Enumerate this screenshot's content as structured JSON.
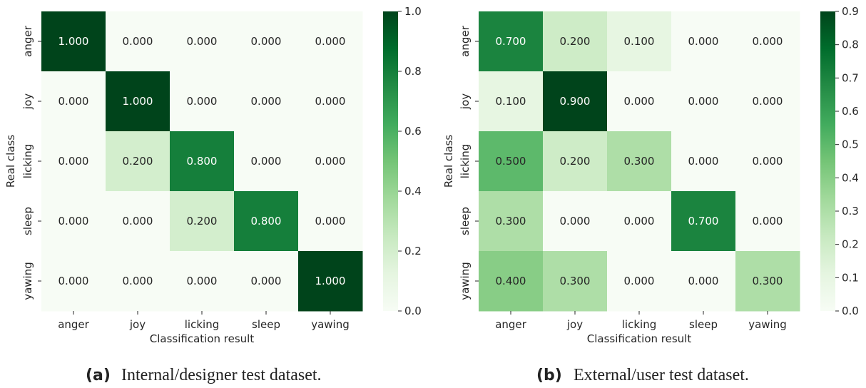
{
  "chart_data": [
    {
      "type": "heatmap",
      "caption_label": "(a)",
      "caption_text": "Internal/designer test dataset.",
      "xlabel": "Classification result",
      "ylabel": "Real class",
      "x_categories": [
        "anger",
        "joy",
        "licking",
        "sleep",
        "yawing"
      ],
      "y_categories": [
        "anger",
        "joy",
        "licking",
        "sleep",
        "yawing"
      ],
      "values": [
        [
          1.0,
          0.0,
          0.0,
          0.0,
          0.0
        ],
        [
          0.0,
          1.0,
          0.0,
          0.0,
          0.0
        ],
        [
          0.0,
          0.2,
          0.8,
          0.0,
          0.0
        ],
        [
          0.0,
          0.0,
          0.2,
          0.8,
          0.0
        ],
        [
          0.0,
          0.0,
          0.0,
          0.0,
          1.0
        ]
      ],
      "cell_labels": [
        [
          "1.000",
          "0.000",
          "0.000",
          "0.000",
          "0.000"
        ],
        [
          "0.000",
          "1.000",
          "0.000",
          "0.000",
          "0.000"
        ],
        [
          "0.000",
          "0.200",
          "0.800",
          "0.000",
          "0.000"
        ],
        [
          "0.000",
          "0.000",
          "0.200",
          "0.800",
          "0.000"
        ],
        [
          "0.000",
          "0.000",
          "0.000",
          "0.000",
          "1.000"
        ]
      ],
      "colormap": "Greens",
      "vmin": 0.0,
      "vmax": 1.0,
      "colorbar_ticks": [
        0.0,
        0.2,
        0.4,
        0.6,
        0.8,
        1.0
      ],
      "colorbar_tick_labels": [
        "0.0",
        "0.2",
        "0.4",
        "0.6",
        "0.8",
        "1.0"
      ]
    },
    {
      "type": "heatmap",
      "caption_label": "(b)",
      "caption_text": "External/user test dataset.",
      "xlabel": "Classification result",
      "ylabel": "Real class",
      "x_categories": [
        "anger",
        "joy",
        "licking",
        "sleep",
        "yawing"
      ],
      "y_categories": [
        "anger",
        "joy",
        "licking",
        "sleep",
        "yawing"
      ],
      "values": [
        [
          0.7,
          0.2,
          0.1,
          0.0,
          0.0
        ],
        [
          0.1,
          0.9,
          0.0,
          0.0,
          0.0
        ],
        [
          0.5,
          0.2,
          0.3,
          0.0,
          0.0
        ],
        [
          0.3,
          0.0,
          0.0,
          0.7,
          0.0
        ],
        [
          0.4,
          0.3,
          0.0,
          0.0,
          0.3
        ]
      ],
      "cell_labels": [
        [
          "0.700",
          "0.200",
          "0.100",
          "0.000",
          "0.000"
        ],
        [
          "0.100",
          "0.900",
          "0.000",
          "0.000",
          "0.000"
        ],
        [
          "0.500",
          "0.200",
          "0.300",
          "0.000",
          "0.000"
        ],
        [
          "0.300",
          "0.000",
          "0.000",
          "0.700",
          "0.000"
        ],
        [
          "0.400",
          "0.300",
          "0.000",
          "0.000",
          "0.300"
        ]
      ],
      "colormap": "Greens",
      "vmin": 0.0,
      "vmax": 0.9,
      "colorbar_ticks": [
        0.0,
        0.1,
        0.2,
        0.3,
        0.4,
        0.5,
        0.6,
        0.7,
        0.8,
        0.9
      ],
      "colorbar_tick_labels": [
        "0.0",
        "0.1",
        "0.2",
        "0.3",
        "0.4",
        "0.5",
        "0.6",
        "0.7",
        "0.8",
        "0.9"
      ]
    }
  ],
  "colors": {
    "greens_stops": [
      "#f7fcf5",
      "#e5f5e0",
      "#c7e9c0",
      "#a1d99b",
      "#74c476",
      "#41ab5d",
      "#238b45",
      "#006d2c",
      "#00441b"
    ],
    "text_dark": "#262626",
    "text_light": "#ffffff"
  }
}
